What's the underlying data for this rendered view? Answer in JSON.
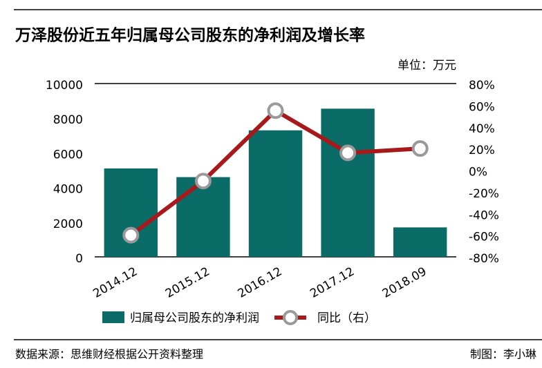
{
  "chart_data": {
    "type": "bar",
    "title": "万泽股份近五年归属母公司股东的净利润及增长率",
    "unit_label": "单位：万元",
    "source": "数据来源：思维财经根据公开资料整理",
    "credit": "制图：李小琳",
    "categories": [
      "2014.12",
      "2015.12",
      "2016.12",
      "2017.12",
      "2018.09"
    ],
    "series": [
      {
        "name": "归属母公司股东的净利润",
        "color": "#0b6b67",
        "type": "bar",
        "values": [
          5100,
          4600,
          7300,
          8550,
          1700
        ]
      },
      {
        "name": "同比（右）",
        "color": "#a8191b",
        "type": "line",
        "axis": "y2",
        "values": [
          -60,
          -10,
          55,
          16,
          20
        ]
      }
    ],
    "ylim": [
      0,
      10000
    ],
    "yticks": [
      0,
      2000,
      4000,
      6000,
      8000,
      10000
    ],
    "y2lim": [
      -80,
      80
    ],
    "y2ticks": [
      {
        "value": -80,
        "label": "-80%"
      },
      {
        "value": -60,
        "label": "-60%"
      },
      {
        "value": -40,
        "label": "-40%"
      },
      {
        "value": -20,
        "label": "-20%"
      },
      {
        "value": 0,
        "label": "0%"
      },
      {
        "value": 20,
        "label": "20%"
      },
      {
        "value": 40,
        "label": "40%"
      },
      {
        "value": 60,
        "label": "60%"
      },
      {
        "value": 80,
        "label": "80%"
      }
    ],
    "grid": false
  }
}
